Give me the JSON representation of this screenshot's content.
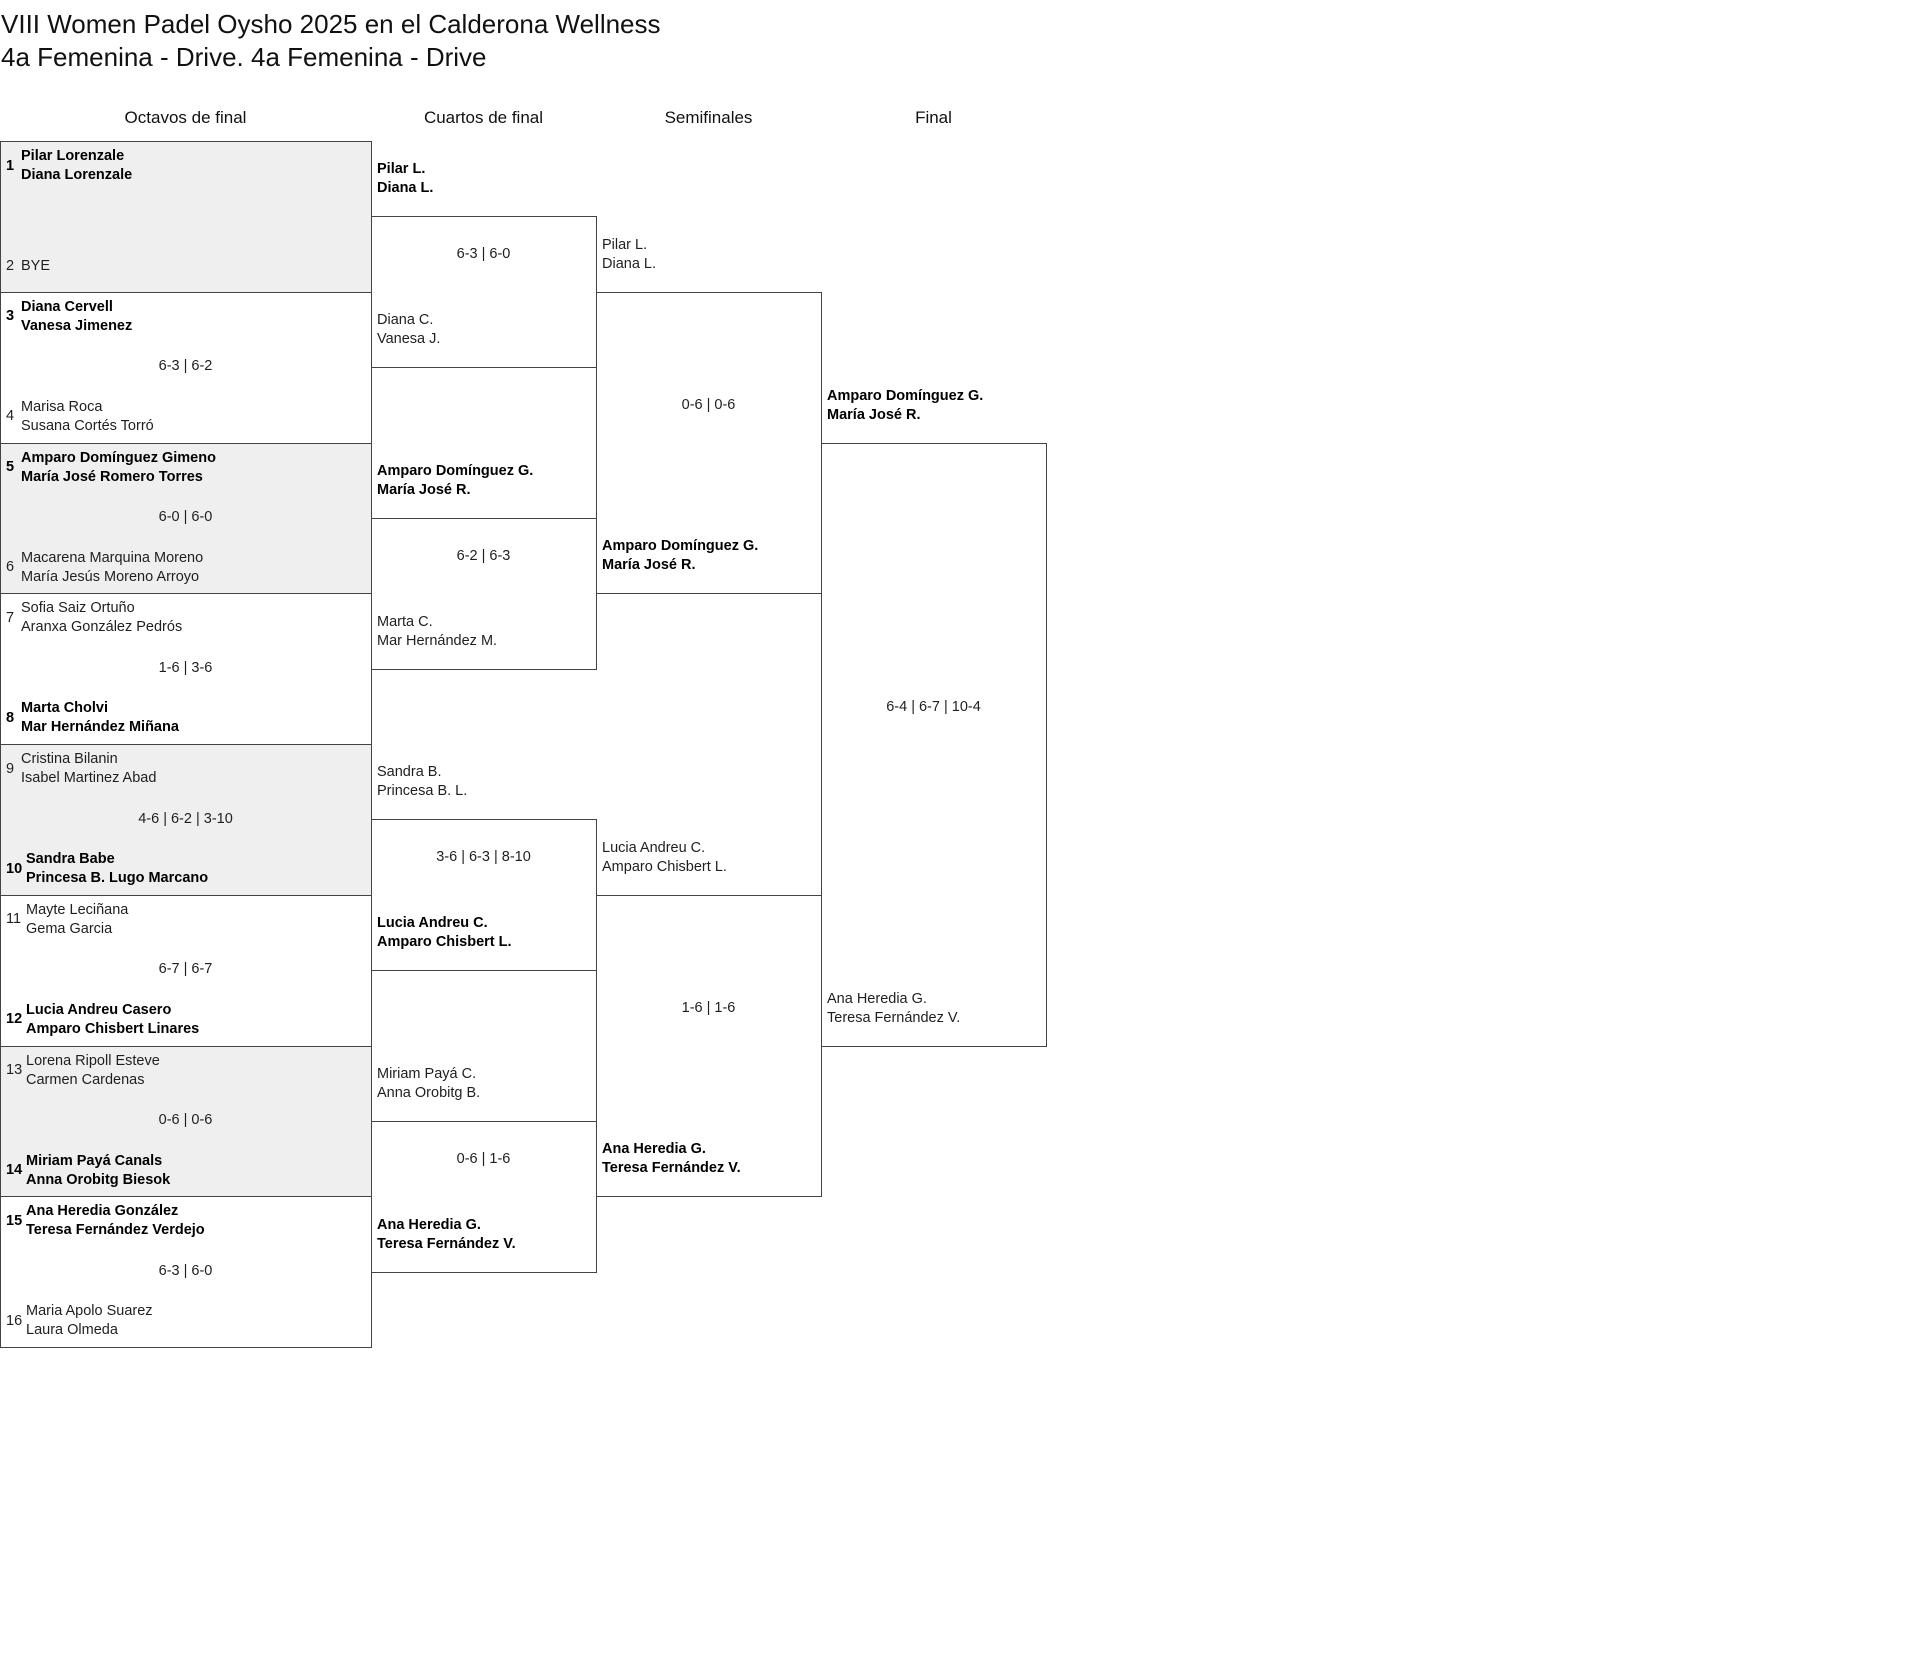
{
  "header": {
    "title": "VIII Women Padel Oysho 2025 en el Calderona Wellness",
    "subtitle": "4a Femenina - Drive. 4a Femenina - Drive"
  },
  "colors": {
    "shade": "#efefef",
    "border": "#444444"
  },
  "rounds": [
    {
      "name": "Octavos de final",
      "matches": [
        {
          "score": "",
          "teams": [
            {
              "seed": "1",
              "players": [
                "Pilar Lorenzale",
                "Diana Lorenzale"
              ],
              "winner": true
            },
            {
              "seed": "2",
              "players": [
                "BYE"
              ],
              "winner": false
            }
          ]
        },
        {
          "score": "6-3 | 6-2",
          "teams": [
            {
              "seed": "3",
              "players": [
                "Diana Cervell",
                "Vanesa Jimenez"
              ],
              "winner": true
            },
            {
              "seed": "4",
              "players": [
                "Marisa Roca",
                "Susana Cortés Torró"
              ],
              "winner": false
            }
          ]
        },
        {
          "score": "6-0 | 6-0",
          "teams": [
            {
              "seed": "5",
              "players": [
                "Amparo Domínguez Gimeno",
                "María José Romero Torres"
              ],
              "winner": true
            },
            {
              "seed": "6",
              "players": [
                "Macarena Marquina Moreno",
                "María Jesús Moreno Arroyo"
              ],
              "winner": false
            }
          ]
        },
        {
          "score": "1-6 | 3-6",
          "teams": [
            {
              "seed": "7",
              "players": [
                "Sofia Saiz Ortuño",
                "Aranxa González Pedrós"
              ],
              "winner": false
            },
            {
              "seed": "8",
              "players": [
                "Marta Cholvi",
                "Mar Hernández Miñana"
              ],
              "winner": true
            }
          ]
        },
        {
          "score": "4-6 | 6-2 | 3-10",
          "teams": [
            {
              "seed": "9",
              "players": [
                "Cristina Bilanin",
                "Isabel Martinez Abad"
              ],
              "winner": false
            },
            {
              "seed": "10",
              "players": [
                "Sandra Babe",
                "Princesa B. Lugo Marcano"
              ],
              "winner": true
            }
          ]
        },
        {
          "score": "6-7 | 6-7",
          "teams": [
            {
              "seed": "11",
              "players": [
                "Mayte Leciñana",
                "Gema Garcia"
              ],
              "winner": false
            },
            {
              "seed": "12",
              "players": [
                "Lucia Andreu Casero",
                "Amparo Chisbert Linares"
              ],
              "winner": true
            }
          ]
        },
        {
          "score": "0-6 | 0-6",
          "teams": [
            {
              "seed": "13",
              "players": [
                "Lorena Ripoll Esteve",
                "Carmen Cardenas"
              ],
              "winner": false
            },
            {
              "seed": "14",
              "players": [
                "Miriam Payá Canals",
                "Anna Orobitg Biesok"
              ],
              "winner": true
            }
          ]
        },
        {
          "score": "6-3 | 6-0",
          "teams": [
            {
              "seed": "15",
              "players": [
                "Ana Heredia González",
                "Teresa Fernández Verdejo"
              ],
              "winner": true
            },
            {
              "seed": "16",
              "players": [
                "Maria Apolo Suarez",
                "Laura Olmeda"
              ],
              "winner": false
            }
          ]
        }
      ]
    },
    {
      "name": "Cuartos de final",
      "matches": [
        {
          "score": "6-3 | 6-0",
          "teams": [
            {
              "players": [
                "Pilar L.",
                "Diana L."
              ],
              "winner": true
            },
            {
              "players": [
                "Diana C.",
                "Vanesa J."
              ],
              "winner": false
            }
          ]
        },
        {
          "score": "6-2 | 6-3",
          "teams": [
            {
              "players": [
                "Amparo Domínguez G.",
                "María José R."
              ],
              "winner": true
            },
            {
              "players": [
                "Marta C.",
                "Mar Hernández M."
              ],
              "winner": false
            }
          ]
        },
        {
          "score": "3-6 | 6-3 | 8-10",
          "teams": [
            {
              "players": [
                "Sandra B.",
                "Princesa B. L."
              ],
              "winner": false
            },
            {
              "players": [
                "Lucia Andreu C.",
                "Amparo Chisbert L."
              ],
              "winner": true
            }
          ]
        },
        {
          "score": "0-6 | 1-6",
          "teams": [
            {
              "players": [
                "Miriam Payá C.",
                "Anna Orobitg B."
              ],
              "winner": false
            },
            {
              "players": [
                "Ana Heredia G.",
                "Teresa Fernández V."
              ],
              "winner": true
            }
          ]
        }
      ]
    },
    {
      "name": "Semifinales",
      "matches": [
        {
          "score": "0-6 | 0-6",
          "teams": [
            {
              "players": [
                "Pilar L.",
                "Diana L."
              ],
              "winner": false
            },
            {
              "players": [
                "Amparo Domínguez G.",
                "María José R."
              ],
              "winner": true
            }
          ]
        },
        {
          "score": "1-6 | 1-6",
          "teams": [
            {
              "players": [
                "Lucia Andreu C.",
                "Amparo Chisbert L."
              ],
              "winner": false
            },
            {
              "players": [
                "Ana Heredia G.",
                "Teresa Fernández V."
              ],
              "winner": true
            }
          ]
        }
      ]
    },
    {
      "name": "Final",
      "matches": [
        {
          "score": "6-4 | 6-7 | 10-4",
          "teams": [
            {
              "players": [
                "Amparo Domínguez G.",
                "María José R."
              ],
              "winner": true
            },
            {
              "players": [
                "Ana Heredia G.",
                "Teresa Fernández V."
              ],
              "winner": false
            }
          ]
        }
      ]
    }
  ]
}
